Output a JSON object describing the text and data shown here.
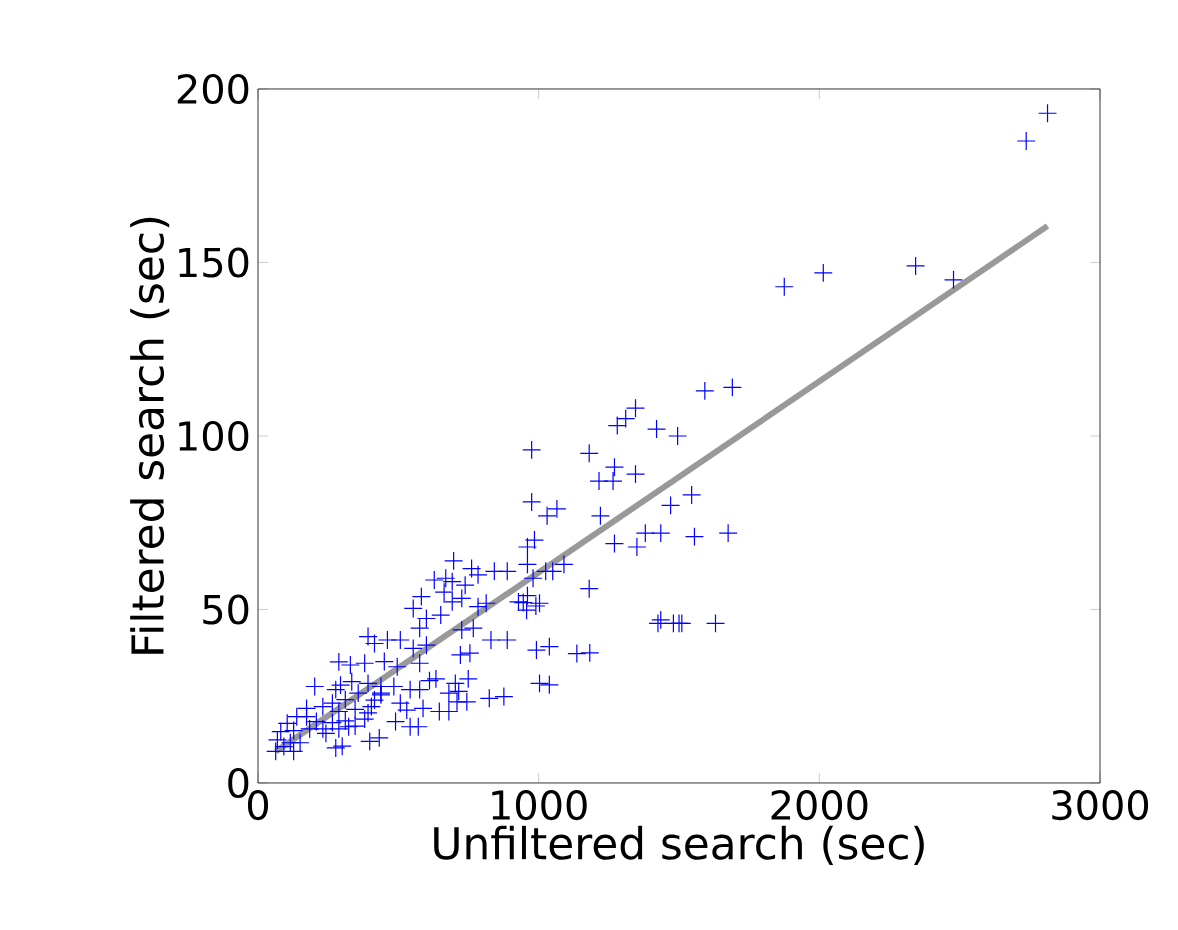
{
  "chart_data": {
    "type": "scatter",
    "xlabel": "Unfiltered search (sec)",
    "ylabel": "Filtered search (sec)",
    "xlim": [
      0,
      3000
    ],
    "ylim": [
      0,
      200
    ],
    "xticks": [
      0,
      1000,
      2000,
      3000
    ],
    "yticks": [
      0,
      50,
      100,
      150,
      200
    ],
    "series": [
      {
        "color": "#0000ff",
        "marker": "cross",
        "x": [
          2813,
          2737,
          2343,
          2478,
          2014,
          1875,
          1592,
          1690,
          1345,
          1310,
          1280,
          1420,
          1495,
          975,
          1180,
          1270,
          1345,
          1215,
          1265,
          1545,
          975,
          1470,
          1065,
          1030,
          1220,
          1270,
          1380,
          1350,
          1435,
          1555,
          1675,
          985,
          960,
          1180,
          960,
          1050,
          1090,
          1025,
          980,
          960,
          945,
          990,
          1435,
          1425,
          1500,
          1480,
          1510,
          1630,
          697,
          628,
          669,
          692,
          761,
          784,
          842,
          888,
          663,
          738,
          692,
          726,
          582,
          553,
          600,
          651,
          784,
          813,
          928,
          957,
          1003,
          576,
          726,
          767,
          830,
          888,
          992,
          1038,
          1136,
          1182,
          721,
          755,
          392,
          415,
          461,
          507,
          553,
          600,
          288,
          329,
          380,
          450,
          496,
          576,
          202,
          294,
          334,
          392,
          438,
          484,
          542,
          611,
          634,
          703,
          749,
          680,
          715,
          576,
          507,
          530,
          588,
          646,
          680,
          709,
          744,
          824,
          876,
          1003,
          1038,
          490,
          542,
          571,
          398,
          432,
          277,
          300,
          438,
          404,
          392,
          346,
          288,
          265,
          231,
          173,
          138,
          104,
          81,
          69,
          92,
          127,
          150,
          184,
          231,
          265,
          311,
          346,
          380,
          415,
          438,
          173,
          208,
          242,
          115,
          63,
          127,
          288,
          323,
          277,
          311,
          357
        ],
        "values": [
          193,
          185,
          149,
          145,
          147,
          143,
          113,
          114,
          108,
          105,
          103,
          102,
          100,
          96,
          95,
          91,
          89,
          87,
          87,
          83,
          81,
          80,
          79,
          77,
          77,
          69,
          72,
          68,
          72,
          71,
          72,
          70,
          68,
          56,
          63,
          61,
          63,
          61,
          59,
          54,
          52,
          51,
          47,
          46,
          46,
          46,
          46,
          46,
          64,
          58.5,
          59,
          58,
          61.8,
          60,
          61,
          61,
          55,
          57,
          52.2,
          53.2,
          53.7,
          50.3,
          47.4,
          48.4,
          50.8,
          51.8,
          52.2,
          49.8,
          51.8,
          44.6,
          44.1,
          44.6,
          41.2,
          41.2,
          38.3,
          39.3,
          37.3,
          37.5,
          36.9,
          37.4,
          42.2,
          40.2,
          41.2,
          41.2,
          38.8,
          39.7,
          34.9,
          34,
          34.5,
          35,
          33.5,
          34.5,
          27.8,
          28.2,
          29.2,
          28.7,
          25.9,
          27.8,
          26.9,
          29.5,
          30,
          28.7,
          30,
          25.9,
          26.4,
          26.9,
          23,
          21,
          21.5,
          20.6,
          20.6,
          23.4,
          23.4,
          24.4,
          24.9,
          28.7,
          28.3,
          17.7,
          16.2,
          16.2,
          12,
          13,
          10.1,
          10.6,
          25.4,
          22,
          20.2,
          21.2,
          20.6,
          23,
          22,
          21.5,
          19.1,
          17.2,
          14.8,
          12.4,
          10.5,
          9.1,
          11.6,
          15.6,
          15.6,
          17.4,
          17.9,
          16.4,
          18.4,
          23.9,
          27.8,
          19.1,
          17.7,
          14.3,
          11.6,
          9.1,
          15.1,
          15.6,
          16.2,
          26.9,
          24,
          25.9
        ]
      },
      {
        "type": "line",
        "color": "#999999",
        "marker": "none",
        "x": [
          63,
          2813
        ],
        "values": [
          9.1,
          160.5
        ]
      }
    ]
  }
}
